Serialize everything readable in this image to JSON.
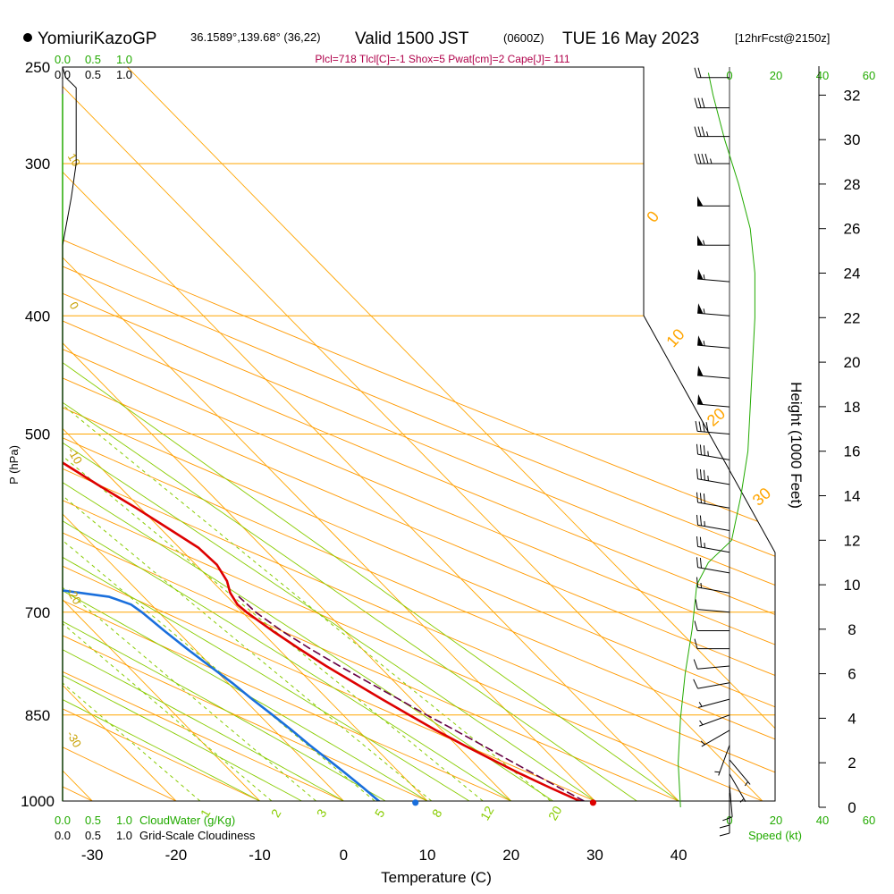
{
  "header": {
    "station": "YomiuriKazoGP",
    "coords": "36.1589°,139.68° (36,22)",
    "valid_label": "Valid 1500 JST",
    "utc": "(0600Z)",
    "date": "TUE 16 May 2023",
    "forecast": "[12hrFcst@2150z]"
  },
  "indices": "Plcl=718 Tlcl[C]=-1 Shox=5 Pwat[cm]=2 Cape[J]= 111",
  "cloud": {
    "water_ticks": [
      "0.0",
      "0.5",
      "1.0"
    ],
    "cover_ticks": [
      "0.0",
      "0.5",
      "1.0"
    ],
    "water_label": "CloudWater (g/Kg)",
    "cover_label": "Grid-Scale Cloudiness"
  },
  "wind_scale": {
    "ticks": [
      "0",
      "20",
      "40",
      "60"
    ],
    "label": "Speed (kt)"
  },
  "colors": {
    "isobar": "#ffa500",
    "isotherm": "#ffa500",
    "dry_adiabat": "#ff9900",
    "moist_adiabat": "#88cc00",
    "mixing_ratio": "#88cc00",
    "temperature": "#dd0000",
    "dewpoint": "#1a6fdc",
    "parcel": "#660044",
    "cloud_line": "#22aa00",
    "wind_speed_line": "#22aa00"
  },
  "chart_data": {
    "type": "line",
    "title": "Skew-T log-P sounding",
    "xlabel": "Temperature (C)",
    "ylabel": "P (hPa)",
    "y2label": "Height (1000 Feet)",
    "x_ticks": [
      -30,
      -20,
      -10,
      0,
      10,
      20,
      30,
      40
    ],
    "pressure_ticks": [
      250,
      300,
      400,
      500,
      700,
      850,
      1000
    ],
    "height_ticks": [
      0,
      2,
      4,
      6,
      8,
      10,
      12,
      14,
      16,
      18,
      20,
      22,
      24,
      26,
      28,
      30,
      32
    ],
    "isotherm_labels": [
      {
        "t": 0,
        "text": "0"
      },
      {
        "t": 10,
        "text": "10"
      },
      {
        "t": 20,
        "text": "20"
      },
      {
        "t": 30,
        "text": "30"
      }
    ],
    "left_isotherm_labels": [
      "10",
      "0",
      "-10",
      "-20",
      "-30"
    ],
    "mixing_ratio_labels": [
      "1",
      "2",
      "3",
      "5",
      "8",
      "12",
      "20"
    ],
    "series": [
      {
        "name": "Temperature",
        "points": [
          {
            "p": 1005,
            "t": 29.1
          },
          {
            "p": 1000,
            "t": 28.2
          },
          {
            "p": 975,
            "t": 26.2
          },
          {
            "p": 950,
            "t": 24.3
          },
          {
            "p": 925,
            "t": 22.6
          },
          {
            "p": 900,
            "t": 20.9
          },
          {
            "p": 875,
            "t": 19.3
          },
          {
            "p": 850,
            "t": 17.9
          },
          {
            "p": 825,
            "t": 16.5
          },
          {
            "p": 800,
            "t": 15.1
          },
          {
            "p": 775,
            "t": 13.7
          },
          {
            "p": 750,
            "t": 12.5
          },
          {
            "p": 725,
            "t": 11.4
          },
          {
            "p": 700,
            "t": 10.5
          },
          {
            "p": 690,
            "t": 10.3
          },
          {
            "p": 675,
            "t": 10.8
          },
          {
            "p": 660,
            "t": 11.8
          },
          {
            "p": 640,
            "t": 12.5
          },
          {
            "p": 620,
            "t": 12.3
          },
          {
            "p": 600,
            "t": 11.1
          },
          {
            "p": 575,
            "t": 9.5
          },
          {
            "p": 550,
            "t": 7.6
          },
          {
            "p": 525,
            "t": 5.8
          },
          {
            "p": 500,
            "t": 3.7
          },
          {
            "p": 475,
            "t": 1.4
          },
          {
            "p": 450,
            "t": -0.9
          },
          {
            "p": 425,
            "t": -3.6
          },
          {
            "p": 400,
            "t": -6.7
          },
          {
            "p": 375,
            "t": -9.8
          },
          {
            "p": 350,
            "t": -13.4
          },
          {
            "p": 325,
            "t": -17.2
          },
          {
            "p": 300,
            "t": -21.9
          },
          {
            "p": 275,
            "t": -27.0
          },
          {
            "p": 262,
            "t": -30.4
          }
        ]
      },
      {
        "name": "Dewpoint",
        "points": [
          {
            "p": 1003,
            "t": 4.3
          },
          {
            "p": 1000,
            "t": 4.2
          },
          {
            "p": 975,
            "t": 3.9
          },
          {
            "p": 950,
            "t": 3.5
          },
          {
            "p": 925,
            "t": 3.0
          },
          {
            "p": 900,
            "t": 2.5
          },
          {
            "p": 875,
            "t": 2.1
          },
          {
            "p": 850,
            "t": 1.6
          },
          {
            "p": 825,
            "t": 1.0
          },
          {
            "p": 800,
            "t": 0.5
          },
          {
            "p": 775,
            "t": -0.2
          },
          {
            "p": 750,
            "t": -0.9
          },
          {
            "p": 725,
            "t": -1.5
          },
          {
            "p": 700,
            "t": -2.0
          },
          {
            "p": 690,
            "t": -2.4
          },
          {
            "p": 680,
            "t": -4.1
          },
          {
            "p": 670,
            "t": -10.0
          },
          {
            "p": 660,
            "t": -16.0
          },
          {
            "p": 640,
            "t": -28.0
          },
          {
            "p": 620,
            "t": -28.5
          },
          {
            "p": 600,
            "t": -23.6
          },
          {
            "p": 575,
            "t": -20.5
          },
          {
            "p": 550,
            "t": -19.0
          },
          {
            "p": 525,
            "t": -20.3
          },
          {
            "p": 500,
            "t": -24.2
          },
          {
            "p": 475,
            "t": -29.1
          },
          {
            "p": 450,
            "t": -33.0
          },
          {
            "p": 425,
            "t": -36.0
          },
          {
            "p": 400,
            "t": -39.6
          },
          {
            "p": 375,
            "t": -39.0
          },
          {
            "p": 350,
            "t": -38.2
          },
          {
            "p": 325,
            "t": -36.9
          },
          {
            "p": 300,
            "t": -40.8
          },
          {
            "p": 262,
            "t": -46.8
          }
        ]
      },
      {
        "name": "Parcel",
        "points": [
          {
            "p": 1000,
            "t": 28.7
          },
          {
            "p": 975,
            "t": 27.3
          },
          {
            "p": 950,
            "t": 25.9
          },
          {
            "p": 925,
            "t": 24.5
          },
          {
            "p": 900,
            "t": 23.1
          },
          {
            "p": 875,
            "t": 21.6
          },
          {
            "p": 850,
            "t": 20.0
          },
          {
            "p": 825,
            "t": 18.5
          },
          {
            "p": 800,
            "t": 16.9
          },
          {
            "p": 775,
            "t": 15.3
          },
          {
            "p": 750,
            "t": 13.8
          },
          {
            "p": 725,
            "t": 12.5
          },
          {
            "p": 700,
            "t": 11.6
          },
          {
            "p": 690,
            "t": 11.5
          },
          {
            "p": 680,
            "t": 11.4
          }
        ]
      }
    ],
    "surface_points": [
      {
        "name": "surface-temperature",
        "p": 1003,
        "t": 29.6
      },
      {
        "name": "surface-dewpoint",
        "p": 1003,
        "t": 8.4
      }
    ],
    "cloud_cover_profile": [
      {
        "p": 250,
        "v": 0.0
      },
      {
        "p": 255,
        "v": 0.05
      },
      {
        "p": 260,
        "v": 0.22
      },
      {
        "p": 300,
        "v": 0.22
      },
      {
        "p": 320,
        "v": 0.14
      },
      {
        "p": 350,
        "v": 0.0
      },
      {
        "p": 1000,
        "v": 0.0
      }
    ],
    "wind_speed_profile": [
      {
        "h": 0,
        "v": 2
      },
      {
        "h": 2,
        "v": 1
      },
      {
        "h": 4,
        "v": 2
      },
      {
        "h": 6,
        "v": 4
      },
      {
        "h": 8,
        "v": 7
      },
      {
        "h": 10,
        "v": 9
      },
      {
        "h": 11,
        "v": 14
      },
      {
        "h": 12,
        "v": 24
      },
      {
        "h": 13,
        "v": 26
      },
      {
        "h": 14,
        "v": 28
      },
      {
        "h": 16,
        "v": 31
      },
      {
        "h": 18,
        "v": 32
      },
      {
        "h": 20,
        "v": 33
      },
      {
        "h": 22,
        "v": 34
      },
      {
        "h": 24,
        "v": 34
      },
      {
        "h": 26,
        "v": 32
      },
      {
        "h": 28,
        "v": 27
      },
      {
        "h": 30,
        "v": 21
      },
      {
        "h": 32,
        "v": 16
      },
      {
        "h": 33,
        "v": 14
      }
    ],
    "wind_barbs": [
      {
        "p": 1000,
        "dir": 180,
        "spd": 8
      },
      {
        "p": 985,
        "dir": 180,
        "spd": 9
      },
      {
        "p": 970,
        "dir": 175,
        "spd": 8
      },
      {
        "p": 950,
        "dir": 150,
        "spd": 5
      },
      {
        "p": 925,
        "dir": 140,
        "spd": 4
      },
      {
        "p": 900,
        "dir": 200,
        "spd": 4
      },
      {
        "p": 875,
        "dir": 240,
        "spd": 5
      },
      {
        "p": 850,
        "dir": 250,
        "spd": 6
      },
      {
        "p": 825,
        "dir": 255,
        "spd": 7
      },
      {
        "p": 800,
        "dir": 260,
        "spd": 8
      },
      {
        "p": 775,
        "dir": 265,
        "spd": 9
      },
      {
        "p": 750,
        "dir": 270,
        "spd": 10
      },
      {
        "p": 725,
        "dir": 270,
        "spd": 10
      },
      {
        "p": 700,
        "dir": 275,
        "spd": 12
      },
      {
        "p": 675,
        "dir": 280,
        "spd": 15
      },
      {
        "p": 650,
        "dir": 280,
        "spd": 20
      },
      {
        "p": 625,
        "dir": 280,
        "spd": 25
      },
      {
        "p": 600,
        "dir": 280,
        "spd": 25
      },
      {
        "p": 575,
        "dir": 280,
        "spd": 30
      },
      {
        "p": 550,
        "dir": 280,
        "spd": 35
      },
      {
        "p": 525,
        "dir": 280,
        "spd": 35
      },
      {
        "p": 500,
        "dir": 275,
        "spd": 40
      },
      {
        "p": 475,
        "dir": 275,
        "spd": 50
      },
      {
        "p": 450,
        "dir": 275,
        "spd": 50
      },
      {
        "p": 425,
        "dir": 275,
        "spd": 55
      },
      {
        "p": 400,
        "dir": 275,
        "spd": 55
      },
      {
        "p": 375,
        "dir": 275,
        "spd": 55
      },
      {
        "p": 350,
        "dir": 270,
        "spd": 55
      },
      {
        "p": 325,
        "dir": 270,
        "spd": 50
      },
      {
        "p": 300,
        "dir": 270,
        "spd": 45
      },
      {
        "p": 285,
        "dir": 270,
        "spd": 35
      },
      {
        "p": 270,
        "dir": 270,
        "spd": 30
      },
      {
        "p": 255,
        "dir": 270,
        "spd": 20
      }
    ]
  }
}
